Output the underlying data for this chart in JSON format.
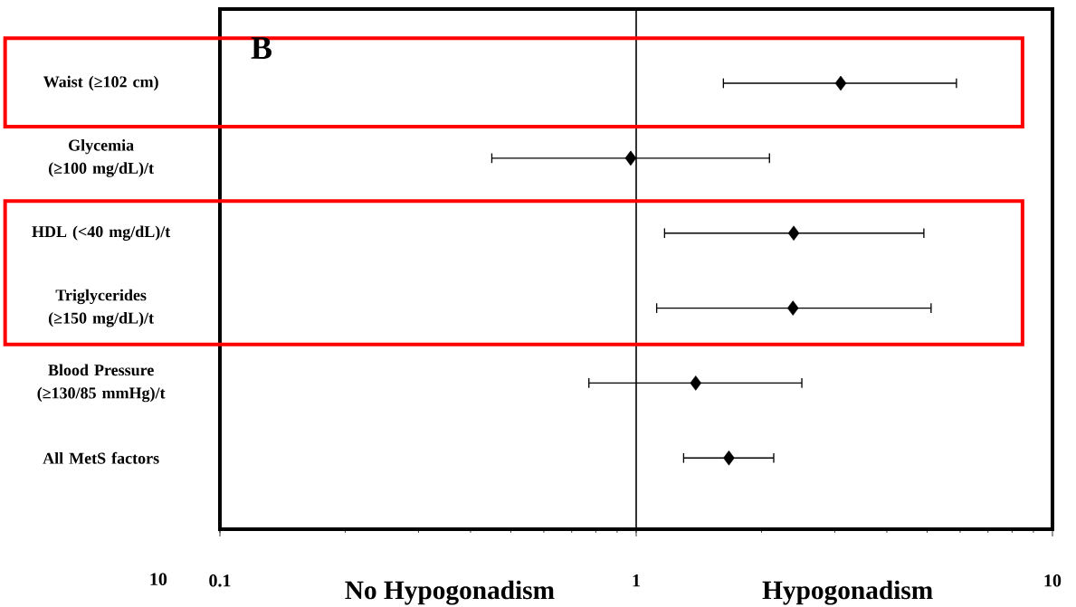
{
  "chart_data": {
    "type": "scatter",
    "orientation": "horizontal",
    "log": "x",
    "marker": "diamond",
    "color": "#000000",
    "categories": [
      "Waist (≥102 cm)",
      "Glycemia (≥100 mg/dL)/t",
      "HDL (<40 mg/dL)/t",
      "Triglycerides (≥150 mg/dL)/t",
      "Blood Pressure (≥130/85 mmHg)/t",
      "All MetS factors"
    ],
    "values": [
      3.1,
      0.97,
      2.39,
      2.38,
      1.39,
      1.67
    ],
    "errors": [
      [
        1.62,
        5.88
      ],
      [
        0.45,
        2.09
      ],
      [
        1.17,
        4.91
      ],
      [
        1.12,
        5.11
      ],
      [
        0.77,
        2.5
      ],
      [
        1.3,
        2.14
      ]
    ],
    "xlim": [
      0.1,
      10
    ],
    "xticks": [
      0.1,
      1,
      10
    ],
    "ref_lines": [
      {
        "axis": "x",
        "value": 1,
        "color": "#000000"
      }
    ],
    "annotations": [
      "B",
      "No Hypogonadism",
      "Hypogonadism",
      "10"
    ]
  }
}
